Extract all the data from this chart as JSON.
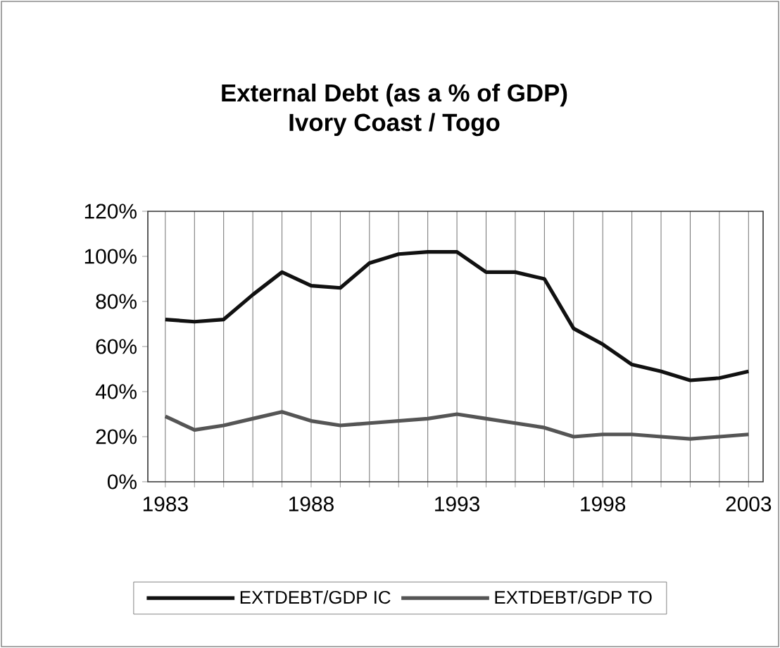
{
  "chart_data": {
    "type": "line",
    "title": "External Debt (as a % of GDP)",
    "subtitle": "Ivory Coast / Togo",
    "categories": [
      "1983",
      null,
      null,
      null,
      null,
      "1988",
      null,
      null,
      null,
      null,
      "1993",
      null,
      null,
      null,
      null,
      "1998",
      null,
      null,
      null,
      null,
      "2003"
    ],
    "series": [
      {
        "name": "EXTDEBT/GDP IC",
        "color": "#111111",
        "values": [
          72,
          71,
          72,
          83,
          93,
          87,
          86,
          97,
          101,
          102,
          102,
          93,
          93,
          90,
          68,
          61,
          52,
          49,
          45,
          46,
          49
        ]
      },
      {
        "name": "EXTDEBT/GDP TO",
        "color": "#555555",
        "values": [
          29,
          23,
          25,
          28,
          31,
          27,
          25,
          26,
          27,
          28,
          30,
          28,
          26,
          24,
          20,
          21,
          21,
          20,
          19,
          20,
          21
        ]
      }
    ],
    "ylim": [
      0,
      120
    ],
    "yticks": [
      {
        "value": 0,
        "label": "0%"
      },
      {
        "value": 20,
        "label": "20%"
      },
      {
        "value": 40,
        "label": "40%"
      },
      {
        "value": 60,
        "label": "60%"
      },
      {
        "value": 80,
        "label": "80%"
      },
      {
        "value": 100,
        "label": "100%"
      },
      {
        "value": 120,
        "label": "120%"
      }
    ],
    "grid": "x",
    "legend": "bottom",
    "marker": "none",
    "line_style": "solid"
  }
}
